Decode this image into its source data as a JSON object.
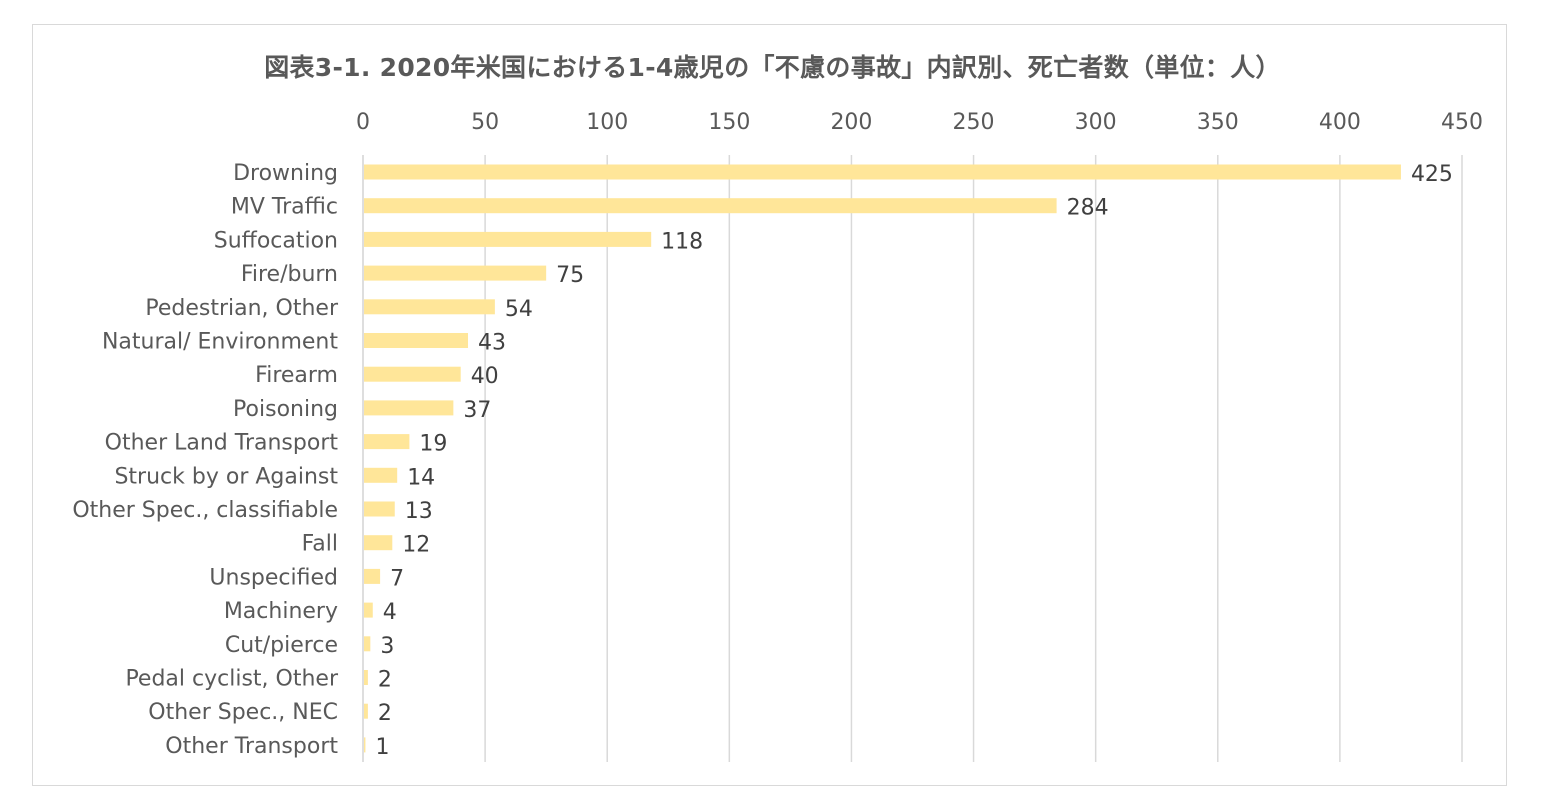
{
  "chart_data": {
    "type": "bar",
    "orientation": "horizontal",
    "title": "図表3-1.  2020年米国における1-4歳児の「不慮の事故」内訳別、死亡者数（単位：人）",
    "xlabel": "",
    "ylabel": "",
    "xlim": [
      0,
      450
    ],
    "x_ticks": [
      0,
      50,
      100,
      150,
      200,
      250,
      300,
      350,
      400,
      450
    ],
    "x_axis_position": "top",
    "grid": true,
    "legend": "none",
    "bar_color": "#ffe699",
    "categories": [
      "Drowning",
      "MV Traffic",
      "Suffocation",
      "Fire/burn",
      "Pedestrian, Other",
      "Natural/ Environment",
      "Firearm",
      "Poisoning",
      "Other Land Transport",
      "Struck by or Against",
      "Other Spec., classifiable",
      "Fall",
      "Unspecified",
      "Machinery",
      "Cut/pierce",
      "Pedal cyclist, Other",
      "Other Spec., NEC",
      "Other Transport"
    ],
    "values": [
      425,
      284,
      118,
      75,
      54,
      43,
      40,
      37,
      19,
      14,
      13,
      12,
      7,
      4,
      3,
      2,
      2,
      1
    ]
  }
}
